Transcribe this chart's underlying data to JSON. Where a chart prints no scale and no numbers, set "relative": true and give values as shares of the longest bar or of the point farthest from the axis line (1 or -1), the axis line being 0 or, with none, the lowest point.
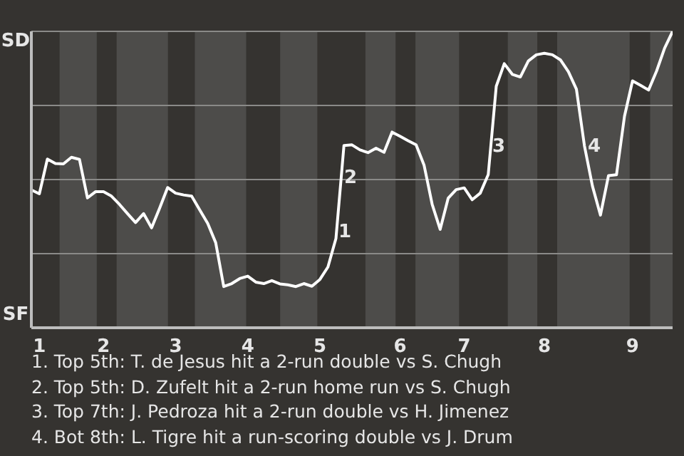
{
  "chart_data": {
    "type": "line",
    "relative": true,
    "annotations": [
      "SD",
      "SF",
      "1",
      "2",
      "3",
      "4",
      "1. Top 5th: T. de Jesus hit a 2-run double vs S. Chugh",
      "2. Top 5th: D. Zufelt hit a 2-run home run vs S. Chugh",
      "3. Top 7th: J. Pedroza hit a 2-run double vs H. Jimenez",
      "4. Bot 8th: L. Tigre hit a run-scoring double vs J. Drum"
    ],
    "categories": [
      null,
      "1",
      null,
      null,
      null,
      null,
      null,
      null,
      null,
      "2",
      null,
      null,
      null,
      null,
      null,
      null,
      null,
      null,
      "3",
      null,
      null,
      null,
      null,
      null,
      null,
      null,
      null,
      "4",
      null,
      null,
      null,
      null,
      null,
      null,
      null,
      null,
      "5",
      null,
      null,
      null,
      null,
      null,
      null,
      null,
      null,
      null,
      "6",
      null,
      null,
      null,
      null,
      null,
      null,
      null,
      "7",
      null,
      null,
      null,
      null,
      null,
      null,
      null,
      null,
      null,
      "8",
      null,
      null,
      null,
      null,
      null,
      null,
      null,
      null,
      null,
      null,
      "9",
      null,
      null,
      null,
      null,
      null
    ],
    "series": [
      {
        "color": "#ffffff",
        "values": [
          0.465,
          0.452,
          0.569,
          0.554,
          0.553,
          0.575,
          0.568,
          0.438,
          0.459,
          0.459,
          0.444,
          0.416,
          0.385,
          0.355,
          0.385,
          0.337,
          0.403,
          0.473,
          0.454,
          0.448,
          0.444,
          0.398,
          0.352,
          0.287,
          0.139,
          0.149,
          0.166,
          0.174,
          0.154,
          0.149,
          0.159,
          0.148,
          0.145,
          0.139,
          0.149,
          0.14,
          0.163,
          0.205,
          0.301,
          0.615,
          0.617,
          0.6,
          0.591,
          0.606,
          0.592,
          0.66,
          0.646,
          0.631,
          0.617,
          0.548,
          0.417,
          0.332,
          0.437,
          0.466,
          0.472,
          0.432,
          0.454,
          0.517,
          0.815,
          0.891,
          0.855,
          0.846,
          0.9,
          0.921,
          0.926,
          0.921,
          0.904,
          0.864,
          0.805,
          0.614,
          0.478,
          0.38,
          0.513,
          0.516,
          0.714,
          0.833,
          0.818,
          0.802,
          0.866,
          0.943,
          1.0
        ]
      }
    ],
    "grid": "y",
    "marker": "none",
    "line_style": "solid"
  }
}
